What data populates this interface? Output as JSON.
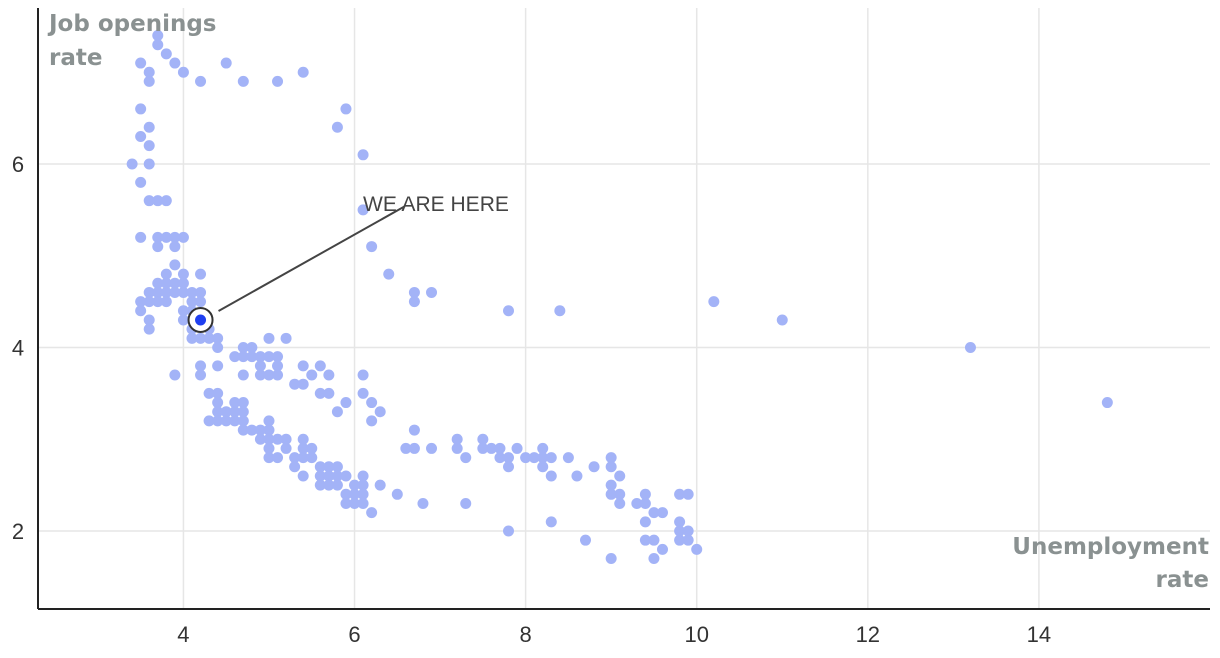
{
  "chart_data": {
    "type": "scatter",
    "title": "",
    "xlabel": [
      "Unemployment",
      "rate"
    ],
    "ylabel": [
      "Job openings",
      "rate"
    ],
    "xlim": [
      2.3,
      16.0
    ],
    "ylim": [
      1.15,
      7.7
    ],
    "x_ticks": [
      4,
      6,
      8,
      10,
      12,
      14
    ],
    "y_ticks": [
      2,
      4,
      6
    ],
    "grid": true,
    "legend": "none",
    "colors": {
      "points": "#a3b3f7",
      "highlight": "#1f3ff0",
      "grid": "#e6e6e6",
      "axis": "#222222",
      "axis_title": "#8a9191"
    },
    "annotation": {
      "text": "WE ARE HERE",
      "target": [
        4.2,
        4.3
      ],
      "label_at": [
        6.6,
        5.55
      ]
    },
    "highlight": {
      "x": 4.2,
      "y": 4.3
    },
    "points": [
      [
        3.7,
        7.4
      ],
      [
        3.7,
        7.3
      ],
      [
        3.8,
        7.2
      ],
      [
        3.5,
        7.1
      ],
      [
        3.9,
        7.1
      ],
      [
        4.5,
        7.1
      ],
      [
        3.6,
        7.0
      ],
      [
        4.0,
        7.0
      ],
      [
        5.4,
        7.0
      ],
      [
        3.6,
        6.9
      ],
      [
        4.2,
        6.9
      ],
      [
        4.7,
        6.9
      ],
      [
        5.1,
        6.9
      ],
      [
        3.5,
        6.6
      ],
      [
        5.9,
        6.6
      ],
      [
        3.6,
        6.4
      ],
      [
        5.8,
        6.4
      ],
      [
        3.5,
        6.3
      ],
      [
        3.6,
        6.2
      ],
      [
        6.1,
        6.1
      ],
      [
        3.4,
        6.0
      ],
      [
        3.6,
        6.0
      ],
      [
        3.5,
        5.8
      ],
      [
        3.6,
        5.6
      ],
      [
        3.7,
        5.6
      ],
      [
        3.8,
        5.6
      ],
      [
        6.1,
        5.5
      ],
      [
        3.5,
        5.2
      ],
      [
        3.7,
        5.2
      ],
      [
        3.8,
        5.2
      ],
      [
        3.9,
        5.2
      ],
      [
        4.0,
        5.2
      ],
      [
        3.7,
        5.1
      ],
      [
        3.9,
        5.1
      ],
      [
        6.2,
        5.1
      ],
      [
        3.9,
        4.9
      ],
      [
        3.8,
        4.8
      ],
      [
        4.0,
        4.8
      ],
      [
        4.2,
        4.8
      ],
      [
        6.4,
        4.8
      ],
      [
        3.7,
        4.7
      ],
      [
        3.8,
        4.7
      ],
      [
        3.9,
        4.7
      ],
      [
        4.0,
        4.7
      ],
      [
        3.6,
        4.6
      ],
      [
        3.7,
        4.6
      ],
      [
        3.8,
        4.6
      ],
      [
        3.9,
        4.6
      ],
      [
        4.0,
        4.6
      ],
      [
        4.1,
        4.6
      ],
      [
        4.2,
        4.6
      ],
      [
        6.7,
        4.6
      ],
      [
        6.9,
        4.6
      ],
      [
        3.5,
        4.5
      ],
      [
        3.6,
        4.5
      ],
      [
        3.7,
        4.5
      ],
      [
        3.8,
        4.5
      ],
      [
        4.1,
        4.5
      ],
      [
        4.2,
        4.5
      ],
      [
        6.7,
        4.5
      ],
      [
        10.2,
        4.5
      ],
      [
        3.5,
        4.4
      ],
      [
        4.0,
        4.4
      ],
      [
        4.1,
        4.4
      ],
      [
        7.8,
        4.4
      ],
      [
        8.4,
        4.4
      ],
      [
        3.6,
        4.3
      ],
      [
        4.0,
        4.3
      ],
      [
        4.1,
        4.3
      ],
      [
        11.0,
        4.3
      ],
      [
        3.6,
        4.2
      ],
      [
        4.1,
        4.2
      ],
      [
        4.3,
        4.2
      ],
      [
        4.1,
        4.1
      ],
      [
        4.2,
        4.1
      ],
      [
        4.3,
        4.1
      ],
      [
        4.4,
        4.1
      ],
      [
        5.0,
        4.1
      ],
      [
        5.2,
        4.1
      ],
      [
        4.4,
        4.0
      ],
      [
        4.7,
        4.0
      ],
      [
        4.8,
        4.0
      ],
      [
        13.2,
        4.0
      ],
      [
        4.6,
        3.9
      ],
      [
        4.7,
        3.9
      ],
      [
        4.8,
        3.9
      ],
      [
        4.9,
        3.9
      ],
      [
        5.0,
        3.9
      ],
      [
        5.1,
        3.9
      ],
      [
        4.2,
        3.8
      ],
      [
        4.4,
        3.8
      ],
      [
        4.9,
        3.8
      ],
      [
        5.1,
        3.8
      ],
      [
        5.4,
        3.8
      ],
      [
        5.6,
        3.8
      ],
      [
        3.9,
        3.7
      ],
      [
        4.2,
        3.7
      ],
      [
        4.7,
        3.7
      ],
      [
        4.9,
        3.7
      ],
      [
        5.0,
        3.7
      ],
      [
        5.1,
        3.7
      ],
      [
        5.5,
        3.7
      ],
      [
        5.7,
        3.7
      ],
      [
        6.1,
        3.7
      ],
      [
        5.3,
        3.6
      ],
      [
        5.4,
        3.6
      ],
      [
        4.3,
        3.5
      ],
      [
        4.4,
        3.5
      ],
      [
        5.6,
        3.5
      ],
      [
        5.7,
        3.5
      ],
      [
        6.1,
        3.5
      ],
      [
        4.4,
        3.4
      ],
      [
        4.6,
        3.4
      ],
      [
        4.7,
        3.4
      ],
      [
        5.9,
        3.4
      ],
      [
        6.2,
        3.4
      ],
      [
        14.8,
        3.4
      ],
      [
        4.4,
        3.3
      ],
      [
        4.5,
        3.3
      ],
      [
        4.6,
        3.3
      ],
      [
        4.7,
        3.3
      ],
      [
        5.8,
        3.3
      ],
      [
        6.3,
        3.3
      ],
      [
        4.3,
        3.2
      ],
      [
        4.4,
        3.2
      ],
      [
        4.5,
        3.2
      ],
      [
        4.6,
        3.2
      ],
      [
        4.7,
        3.2
      ],
      [
        5.0,
        3.2
      ],
      [
        6.2,
        3.2
      ],
      [
        4.7,
        3.1
      ],
      [
        4.8,
        3.1
      ],
      [
        4.9,
        3.1
      ],
      [
        5.0,
        3.1
      ],
      [
        6.7,
        3.1
      ],
      [
        4.9,
        3.0
      ],
      [
        5.0,
        3.0
      ],
      [
        5.1,
        3.0
      ],
      [
        5.2,
        3.0
      ],
      [
        5.4,
        3.0
      ],
      [
        7.2,
        3.0
      ],
      [
        7.5,
        3.0
      ],
      [
        5.0,
        2.9
      ],
      [
        5.2,
        2.9
      ],
      [
        5.4,
        2.9
      ],
      [
        5.5,
        2.9
      ],
      [
        6.6,
        2.9
      ],
      [
        6.7,
        2.9
      ],
      [
        6.9,
        2.9
      ],
      [
        7.2,
        2.9
      ],
      [
        7.5,
        2.9
      ],
      [
        7.6,
        2.9
      ],
      [
        7.7,
        2.9
      ],
      [
        7.9,
        2.9
      ],
      [
        8.2,
        2.9
      ],
      [
        5.0,
        2.8
      ],
      [
        5.1,
        2.8
      ],
      [
        5.3,
        2.8
      ],
      [
        5.4,
        2.8
      ],
      [
        5.5,
        2.8
      ],
      [
        7.3,
        2.8
      ],
      [
        7.7,
        2.8
      ],
      [
        7.8,
        2.8
      ],
      [
        8.0,
        2.8
      ],
      [
        8.1,
        2.8
      ],
      [
        8.2,
        2.8
      ],
      [
        8.3,
        2.8
      ],
      [
        8.5,
        2.8
      ],
      [
        9.0,
        2.8
      ],
      [
        5.3,
        2.7
      ],
      [
        5.6,
        2.7
      ],
      [
        5.7,
        2.7
      ],
      [
        5.8,
        2.7
      ],
      [
        7.8,
        2.7
      ],
      [
        8.2,
        2.7
      ],
      [
        8.8,
        2.7
      ],
      [
        9.0,
        2.7
      ],
      [
        5.4,
        2.6
      ],
      [
        5.6,
        2.6
      ],
      [
        5.7,
        2.6
      ],
      [
        5.8,
        2.6
      ],
      [
        5.9,
        2.6
      ],
      [
        6.1,
        2.6
      ],
      [
        8.3,
        2.6
      ],
      [
        8.6,
        2.6
      ],
      [
        9.1,
        2.6
      ],
      [
        5.6,
        2.5
      ],
      [
        5.7,
        2.5
      ],
      [
        5.8,
        2.5
      ],
      [
        6.0,
        2.5
      ],
      [
        6.1,
        2.5
      ],
      [
        6.3,
        2.5
      ],
      [
        9.0,
        2.5
      ],
      [
        5.9,
        2.4
      ],
      [
        6.0,
        2.4
      ],
      [
        6.1,
        2.4
      ],
      [
        6.5,
        2.4
      ],
      [
        9.0,
        2.4
      ],
      [
        9.1,
        2.4
      ],
      [
        9.4,
        2.4
      ],
      [
        9.8,
        2.4
      ],
      [
        9.9,
        2.4
      ],
      [
        5.9,
        2.3
      ],
      [
        6.0,
        2.3
      ],
      [
        6.1,
        2.3
      ],
      [
        6.8,
        2.3
      ],
      [
        7.3,
        2.3
      ],
      [
        9.1,
        2.3
      ],
      [
        9.3,
        2.3
      ],
      [
        9.4,
        2.3
      ],
      [
        6.2,
        2.2
      ],
      [
        9.5,
        2.2
      ],
      [
        9.6,
        2.2
      ],
      [
        8.3,
        2.1
      ],
      [
        9.4,
        2.1
      ],
      [
        9.8,
        2.1
      ],
      [
        7.8,
        2.0
      ],
      [
        9.8,
        2.0
      ],
      [
        9.9,
        2.0
      ],
      [
        8.7,
        1.9
      ],
      [
        9.4,
        1.9
      ],
      [
        9.5,
        1.9
      ],
      [
        9.8,
        1.9
      ],
      [
        9.9,
        1.9
      ],
      [
        9.6,
        1.8
      ],
      [
        10.0,
        1.8
      ],
      [
        9.0,
        1.7
      ],
      [
        9.5,
        1.7
      ]
    ]
  }
}
